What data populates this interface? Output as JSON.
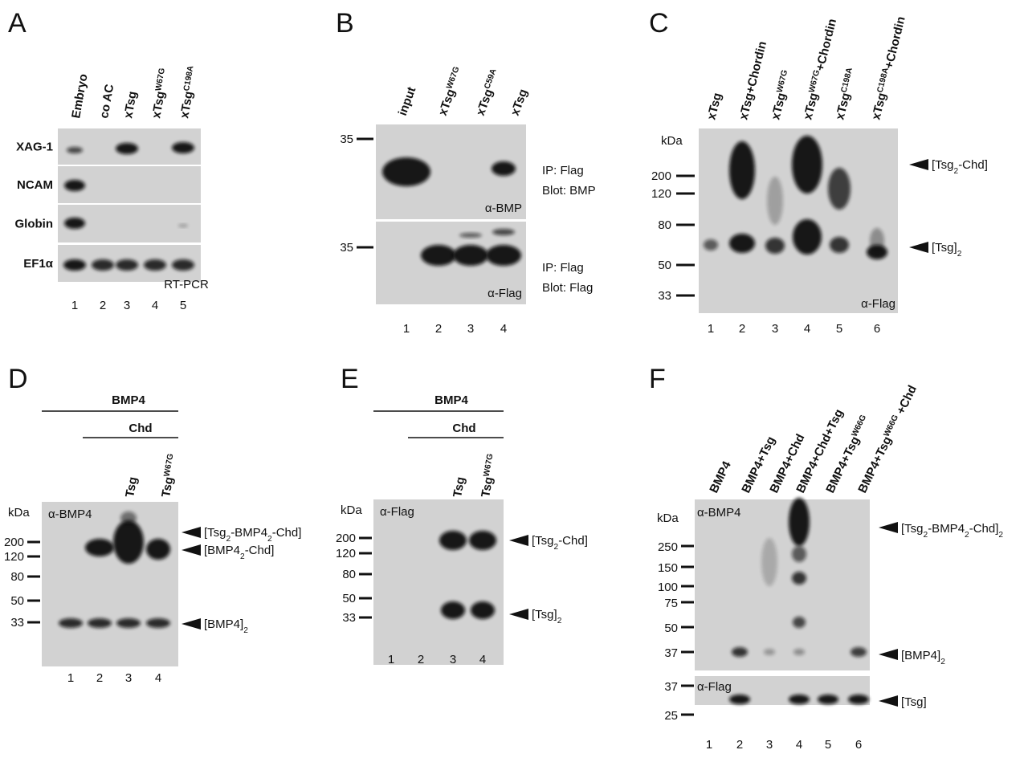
{
  "panels": [
    {
      "letter": "A",
      "lanes": [
        "Embryo",
        "co AC",
        "xTsg",
        [
          "xTsg",
          {
            "sup": "W67G"
          }
        ],
        [
          "xTsg",
          {
            "sup": "C198A"
          }
        ]
      ],
      "row_labels": [
        "XAG-1",
        "NCAM",
        "Globin",
        "EF1α"
      ],
      "method": "RT-PCR",
      "lane_numbers": [
        1,
        2,
        3,
        4,
        5
      ]
    },
    {
      "letter": "B",
      "lanes": [
        "input",
        [
          "xTsg",
          {
            "sup": "W67G"
          }
        ],
        [
          "xTsg",
          {
            "sup": "C59A"
          }
        ],
        "xTsg"
      ],
      "blots": [
        {
          "marker": 35,
          "ip": "IP: Flag",
          "blot": "Blot: BMP",
          "antibody": "α-BMP"
        },
        {
          "marker": 35,
          "ip": "IP: Flag",
          "blot": "Blot: Flag",
          "antibody": "α-Flag"
        }
      ],
      "lane_numbers": [
        1,
        2,
        3,
        4
      ]
    },
    {
      "letter": "C",
      "lanes": [
        "xTsg",
        "xTsg+Chordin",
        [
          "xTsg",
          {
            "sup": "W67G"
          }
        ],
        [
          "xTsg",
          {
            "sup": "W67G"
          },
          "+Chordin"
        ],
        [
          "xTsg",
          {
            "sup": "C198A"
          }
        ],
        [
          "xTsg",
          {
            "sup": "C198A"
          },
          "+Chordin"
        ]
      ],
      "unit": "kDa",
      "markers": [
        200,
        120,
        80,
        50,
        33
      ],
      "antibody": "α-Flag",
      "bands": [
        [
          "[Tsg",
          {
            "sub": "2"
          },
          "-Chd]"
        ],
        [
          "[Tsg]",
          {
            "sub": "2"
          }
        ]
      ],
      "lane_numbers": [
        1,
        2,
        3,
        4,
        5,
        6
      ]
    },
    {
      "letter": "D",
      "groups": [
        "BMP4",
        "Chd"
      ],
      "lanes": [
        "Tsg",
        [
          "Tsg",
          {
            "sup": "W67G"
          }
        ]
      ],
      "unit": "kDa",
      "antibody": "α-BMP4",
      "markers": [
        200,
        120,
        80,
        50,
        33
      ],
      "bands": [
        [
          "[Tsg",
          {
            "sub": "2"
          },
          "-BMP4",
          {
            "sub": "2"
          },
          "-Chd]"
        ],
        [
          "[BMP4",
          {
            "sub": "2"
          },
          "-Chd]"
        ],
        [
          "[BMP4]",
          {
            "sub": "2"
          }
        ]
      ],
      "lane_numbers": [
        1,
        2,
        3,
        4
      ]
    },
    {
      "letter": "E",
      "groups": [
        "BMP4",
        "Chd"
      ],
      "lanes": [
        "Tsg",
        [
          "Tsg",
          {
            "sup": "W67G"
          }
        ]
      ],
      "unit": "kDa",
      "antibody": "α-Flag",
      "markers": [
        200,
        120,
        80,
        50,
        33
      ],
      "bands": [
        [
          "[Tsg",
          {
            "sub": "2"
          },
          "-Chd]"
        ],
        [
          "[Tsg]",
          {
            "sub": "2"
          }
        ]
      ],
      "lane_numbers": [
        1,
        2,
        3,
        4
      ]
    },
    {
      "letter": "F",
      "lanes": [
        "BMP4",
        "BMP4+Tsg",
        "BMP4+Chd",
        "BMP4+Chd+Tsg",
        [
          "BMP4+Tsg",
          {
            "sup": "W66G"
          }
        ],
        [
          "BMP4+Tsg",
          {
            "sup": "W66G"
          },
          " +Chd"
        ]
      ],
      "unit": "kDa",
      "blots": [
        {
          "antibody": "α-BMP4",
          "markers": [
            250,
            150,
            100,
            75,
            50,
            37
          ]
        },
        {
          "antibody": "α-Flag",
          "markers": [
            37,
            25
          ]
        }
      ],
      "bands": [
        [
          "[Tsg",
          {
            "sub": "2"
          },
          "-BMP4",
          {
            "sub": "2"
          },
          "-Chd]",
          {
            "sub": "2"
          }
        ],
        [
          "[BMP4]",
          {
            "sub": "2"
          }
        ],
        "[Tsg]"
      ],
      "lane_numbers": [
        1,
        2,
        3,
        4,
        5,
        6
      ]
    }
  ]
}
